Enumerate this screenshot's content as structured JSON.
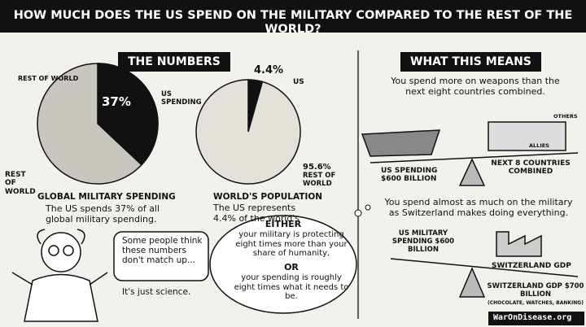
{
  "title": "HOW MUCH DOES THE US SPEND ON THE MILITARY COMPARED TO THE REST OF THE WORLD?",
  "left": {
    "heading": "THE NUMBERS",
    "spending_pie": {
      "type": "pie",
      "values": [
        37
      ],
      "value_labels": [
        "37%"
      ],
      "colors": [
        "#111111"
      ],
      "labels": [
        "US SPENDING"
      ],
      "rest_labels": [
        "REST OF WORLD",
        "REST OF WORLD"
      ],
      "rest_color": "#c9c6bf",
      "caption": "GLOBAL MILITARY SPENDING",
      "text": "The US spends 37% of all global military spending."
    },
    "population_pie": {
      "type": "pie",
      "values": [
        4.4,
        95.6
      ],
      "value_labels": [
        "4.4%",
        "95.6%"
      ],
      "colors": [
        "#111111",
        "#e4e1da"
      ],
      "labels": [
        "US",
        "REST OF WORLD"
      ],
      "caption": "WORLD'S POPULATION",
      "text": "The US represents 4.4% of the world's"
    },
    "professor": {
      "speech": "Some people think these numbers don't match up...",
      "aside": "It's just science."
    },
    "thought": {
      "either": "EITHER",
      "first": "your military is protecting eight times more than your share of humanity,",
      "or": "OR",
      "second": "your spending is roughly eight times what it needs to be."
    }
  },
  "right": {
    "heading": "WHAT THIS MEANS",
    "first_point": "You spend more on weapons than the next eight countries combined.",
    "first_scale": {
      "left": "US SPENDING $600 BILLION",
      "right": "NEXT 8 COUNTRIES COMBINED",
      "others": "OTHERS",
      "allies": "ALLIES"
    },
    "second_point": "You spend almost as much on the military as Switzerland makes doing everything.",
    "second_scale": {
      "left": "US MILITARY SPENDING $600 BILLION",
      "factory": "SWITZERLAND GDP",
      "right": "SWITZERLAND GDP $700 BILLION",
      "note": "(CHOCOLATE, WATCHES, BANKING)"
    }
  },
  "footer": "WarOnDisease.org"
}
